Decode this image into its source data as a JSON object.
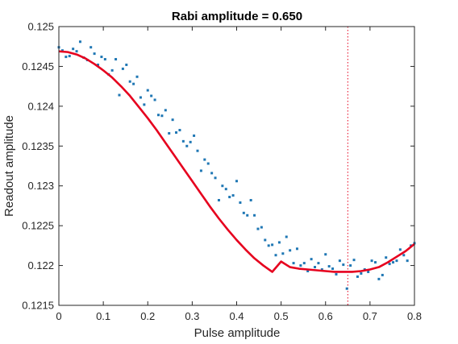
{
  "chart_data": {
    "type": "scatter",
    "title": "Rabi amplitude = 0.650",
    "xlabel": "Pulse amplitude",
    "ylabel": "Readout amplitude",
    "xlim": [
      0,
      0.8
    ],
    "ylim": [
      0.1215,
      0.125
    ],
    "x_ticks": [
      0,
      0.1,
      0.2,
      0.3,
      0.4,
      0.5,
      0.6,
      0.7,
      0.8
    ],
    "x_tick_labels": [
      "0",
      "0.1",
      "0.2",
      "0.3",
      "0.4",
      "0.5",
      "0.6",
      "0.7",
      "0.8"
    ],
    "y_ticks": [
      0.1215,
      0.122,
      0.1225,
      0.123,
      0.1235,
      0.124,
      0.1245,
      0.125
    ],
    "y_tick_labels": [
      "0.1215",
      "0.122",
      "0.1225",
      "0.123",
      "0.1235",
      "0.124",
      "0.1245",
      "0.125"
    ],
    "grid": false,
    "series": [
      {
        "type": "scatter",
        "color": "#1f77b4",
        "x": [
          0.0,
          0.008,
          0.016,
          0.024,
          0.032,
          0.04,
          0.048,
          0.056,
          0.064,
          0.072,
          0.08,
          0.088,
          0.096,
          0.104,
          0.112,
          0.12,
          0.128,
          0.136,
          0.144,
          0.152,
          0.16,
          0.168,
          0.176,
          0.184,
          0.192,
          0.2,
          0.208,
          0.216,
          0.224,
          0.232,
          0.24,
          0.248,
          0.256,
          0.264,
          0.272,
          0.28,
          0.288,
          0.296,
          0.304,
          0.312,
          0.32,
          0.328,
          0.336,
          0.344,
          0.352,
          0.36,
          0.368,
          0.376,
          0.384,
          0.392,
          0.4,
          0.408,
          0.416,
          0.424,
          0.432,
          0.44,
          0.448,
          0.456,
          0.464,
          0.472,
          0.48,
          0.488,
          0.496,
          0.504,
          0.512,
          0.52,
          0.528,
          0.536,
          0.544,
          0.552,
          0.56,
          0.568,
          0.576,
          0.584,
          0.592,
          0.6,
          0.608,
          0.616,
          0.624,
          0.632,
          0.64,
          0.648,
          0.656,
          0.664,
          0.672,
          0.68,
          0.688,
          0.696,
          0.704,
          0.712,
          0.72,
          0.728,
          0.736,
          0.744,
          0.752,
          0.76,
          0.768,
          0.776,
          0.784,
          0.792,
          0.8
        ],
        "y": [
          0.12474,
          0.1247,
          0.12462,
          0.12463,
          0.12472,
          0.12469,
          0.12481,
          0.12461,
          0.12458,
          0.12474,
          0.12466,
          0.12452,
          0.12462,
          0.12459,
          0.1244,
          0.12445,
          0.12459,
          0.12414,
          0.12447,
          0.12452,
          0.12431,
          0.12428,
          0.12437,
          0.12411,
          0.12402,
          0.1242,
          0.12413,
          0.12408,
          0.12389,
          0.12388,
          0.12395,
          0.12366,
          0.12383,
          0.12367,
          0.1237,
          0.12356,
          0.1235,
          0.12355,
          0.12363,
          0.12344,
          0.12319,
          0.12333,
          0.12328,
          0.12316,
          0.1231,
          0.12282,
          0.123,
          0.12296,
          0.12286,
          0.12288,
          0.12306,
          0.12279,
          0.12266,
          0.12263,
          0.12282,
          0.12263,
          0.12246,
          0.12248,
          0.12232,
          0.12225,
          0.12226,
          0.12213,
          0.12229,
          0.12215,
          0.12236,
          0.12219,
          0.12203,
          0.12221,
          0.122,
          0.12203,
          0.12193,
          0.12208,
          0.12198,
          0.12203,
          0.12195,
          0.12214,
          0.12199,
          0.12196,
          0.12189,
          0.12206,
          0.12201,
          0.12171,
          0.122,
          0.12207,
          0.12186,
          0.1219,
          0.12195,
          0.12192,
          0.12206,
          0.12204,
          0.12183,
          0.12188,
          0.1221,
          0.12202,
          0.12204,
          0.12206,
          0.1222,
          0.12213,
          0.12206,
          0.12225,
          0.12228
        ]
      },
      {
        "type": "line",
        "color": "#e6001e",
        "x": [
          0.0,
          0.02,
          0.04,
          0.06,
          0.08,
          0.1,
          0.12,
          0.14,
          0.16,
          0.18,
          0.2,
          0.22,
          0.24,
          0.26,
          0.28,
          0.3,
          0.32,
          0.34,
          0.36,
          0.38,
          0.4,
          0.42,
          0.44,
          0.46,
          0.48,
          0.5,
          0.52,
          0.54,
          0.56,
          0.58,
          0.6,
          0.62,
          0.64,
          0.66,
          0.68,
          0.7,
          0.72,
          0.74,
          0.76,
          0.78,
          0.8
        ],
        "y": [
          0.12469,
          0.12468,
          0.12465,
          0.1246,
          0.12453,
          0.12445,
          0.12436,
          0.12425,
          0.12413,
          0.12399,
          0.12385,
          0.1237,
          0.12354,
          0.12338,
          0.12322,
          0.12306,
          0.1229,
          0.12274,
          0.12259,
          0.12245,
          0.12232,
          0.1222,
          0.12209,
          0.122,
          0.12192,
          0.12205,
          0.12198,
          0.12196,
          0.12195,
          0.12194,
          0.12193,
          0.12192,
          0.12192,
          0.12192,
          0.12193,
          0.12195,
          0.12198,
          0.12204,
          0.12211,
          0.12218,
          0.12227
        ]
      }
    ],
    "reference_line": {
      "type": "vertical-dotted",
      "x": 0.65,
      "color": "#e6001e"
    }
  }
}
